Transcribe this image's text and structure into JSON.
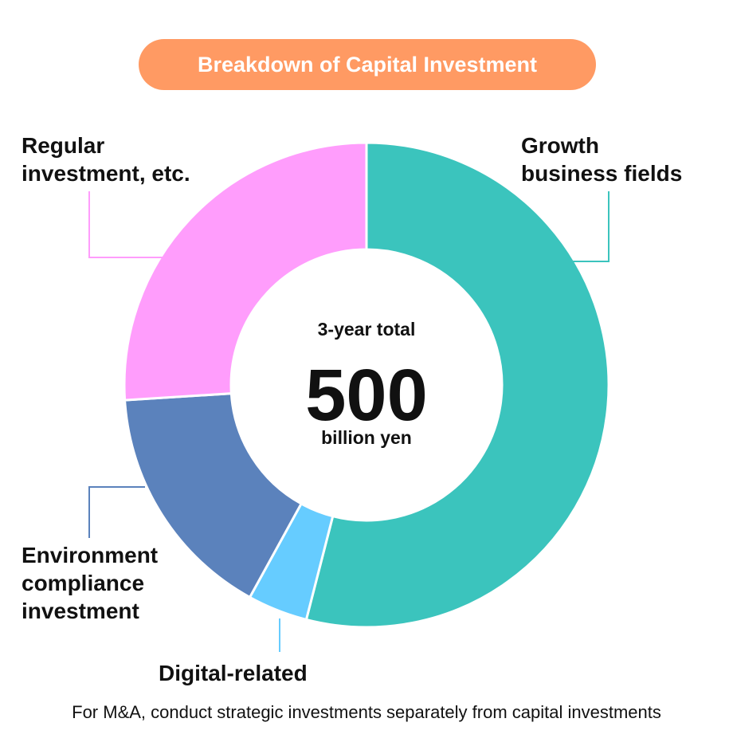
{
  "chart_data": {
    "type": "pie",
    "title": "Breakdown of Capital Investment",
    "style": "donut",
    "slices": [
      {
        "label": "Growth business fields",
        "value": 54,
        "color": "#3bc4bd"
      },
      {
        "label": "Digital-related",
        "value": 4,
        "color": "#66ccff"
      },
      {
        "label": "Environment compliance investment",
        "value": 16,
        "color": "#5b82bc"
      },
      {
        "label": "Regular investment, etc.",
        "value": 26,
        "color": "#ff9dfc"
      }
    ],
    "center": {
      "top": "3-year total",
      "value": "500",
      "unit": "billion yen"
    },
    "labels": {
      "growth": "Growth\nbusiness fields",
      "digital": "Digital-related",
      "environment": "Environment\ncompliance\ninvestment",
      "regular": "Regular\ninvestment, etc."
    }
  },
  "footnote": "For M&A, conduct strategic investments separately from capital investments"
}
